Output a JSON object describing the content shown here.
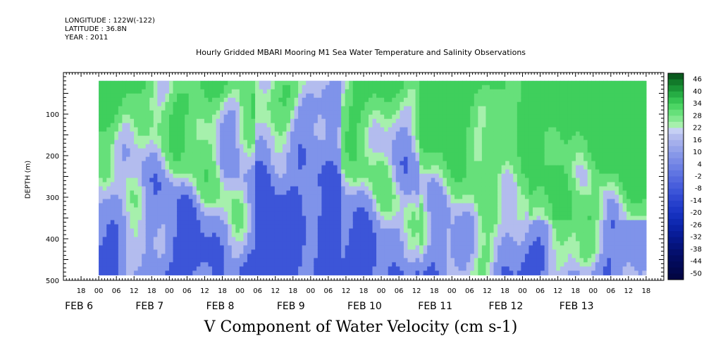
{
  "header": {
    "longitude": "LONGITUDE : 122W(-122)",
    "latitude": "LATITUDE : 36.8N",
    "year": "YEAR : 2011"
  },
  "chart_data": {
    "type": "heatmap",
    "title": "Hourly Gridded MBARI Mooring M1 Sea Water Temperature and Salinity Observations",
    "caption": "V Component of Water Velocity (cm s-1)",
    "xlabel": "",
    "ylabel": "DEPTH (m)",
    "ylim": [
      500,
      0
    ],
    "yticks": [
      100,
      200,
      300,
      400,
      500
    ],
    "x_hour_ticks": [
      "18",
      "00",
      "06",
      "12",
      "18",
      "00",
      "06",
      "12",
      "18",
      "00",
      "06",
      "12",
      "18",
      "00",
      "06",
      "12",
      "18",
      "00",
      "06",
      "12",
      "18",
      "00",
      "06",
      "12",
      "18",
      "00",
      "06",
      "12",
      "18",
      "00",
      "06",
      "12",
      "18"
    ],
    "x_day_labels": [
      "FEB 6",
      "FEB 7",
      "FEB 8",
      "FEB 9",
      "FEB 10",
      "FEB 11",
      "FEB 12",
      "FEB 13"
    ],
    "colorbar": {
      "labels": [
        "46",
        "40",
        "34",
        "28",
        "22",
        "16",
        "10",
        "4",
        "-2",
        "-8",
        "-14",
        "-20",
        "-26",
        "-32",
        "-38",
        "-44",
        "-50"
      ],
      "min": -50,
      "max": 50
    },
    "data_range": {
      "hours_start": 0,
      "hours_end": 186,
      "depth_top": 20,
      "depth_bottom": 487
    },
    "colors": {
      "green": "#66e07a",
      "lightgreen": "#a6f0ac",
      "blue": "#7f93ea",
      "darkblue": "#3c55d8",
      "paleblue": "#b3bcee"
    }
  }
}
